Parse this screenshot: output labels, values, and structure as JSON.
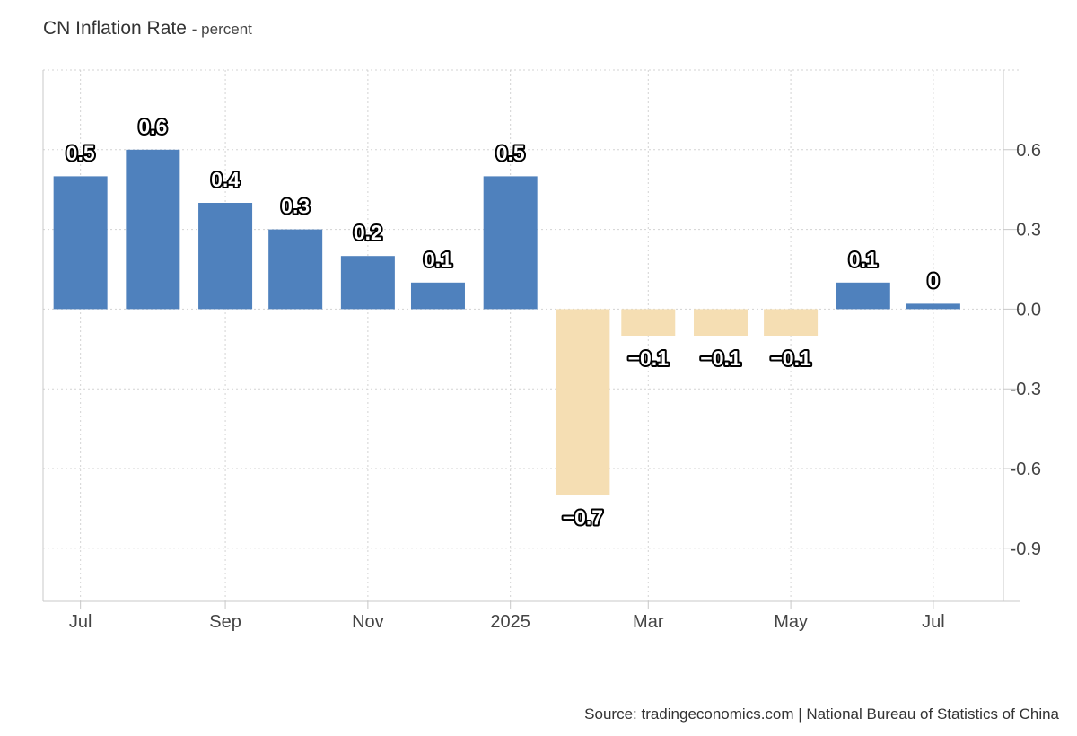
{
  "title": "CN Inflation Rate",
  "subtitle_separator": "-",
  "subtitle": "percent",
  "source": "Source: tradingeconomics.com | National Bureau of Statistics of China",
  "colors": {
    "positive": "#4F81BD",
    "negative": "#F5DEB3",
    "grid": "#d3d3d3",
    "axis": "#c8c8c8",
    "text": "#333333"
  },
  "chart_data": {
    "type": "bar",
    "categories": [
      "2024-07",
      "2024-08",
      "2024-09",
      "2024-10",
      "2024-11",
      "2024-12",
      "2025-01",
      "2025-02",
      "2025-03",
      "2025-04",
      "2025-05",
      "2025-06",
      "2025-07"
    ],
    "values": [
      0.5,
      0.6,
      0.4,
      0.3,
      0.2,
      0.1,
      0.5,
      -0.7,
      -0.1,
      -0.1,
      -0.1,
      0.1,
      0
    ],
    "data_labels": [
      "0.5",
      "0.6",
      "0.4",
      "0.3",
      "0.2",
      "0.1",
      "0.5",
      "−0.7",
      "−0.1",
      "−0.1",
      "−0.1",
      "0.1",
      "0"
    ],
    "x_tick_labels": [
      {
        "category": "2024-07",
        "label": "Jul"
      },
      {
        "category": "2024-09",
        "label": "Sep"
      },
      {
        "category": "2024-11",
        "label": "Nov"
      },
      {
        "category": "2025-01",
        "label": "2025"
      },
      {
        "category": "2025-03",
        "label": "Mar"
      },
      {
        "category": "2025-05",
        "label": "May"
      },
      {
        "category": "2025-07",
        "label": "Jul"
      }
    ],
    "y_ticks": [
      0.6,
      0.3,
      0.0,
      -0.3,
      -0.6,
      -0.9
    ],
    "y_tick_labels": [
      "0.6",
      "0.3",
      "0.0",
      "-0.3",
      "-0.6",
      "-0.9"
    ],
    "ylim": [
      -1.1,
      0.9
    ],
    "y_axis_position": "right",
    "grid": true,
    "xlabel": "",
    "ylabel": ""
  }
}
